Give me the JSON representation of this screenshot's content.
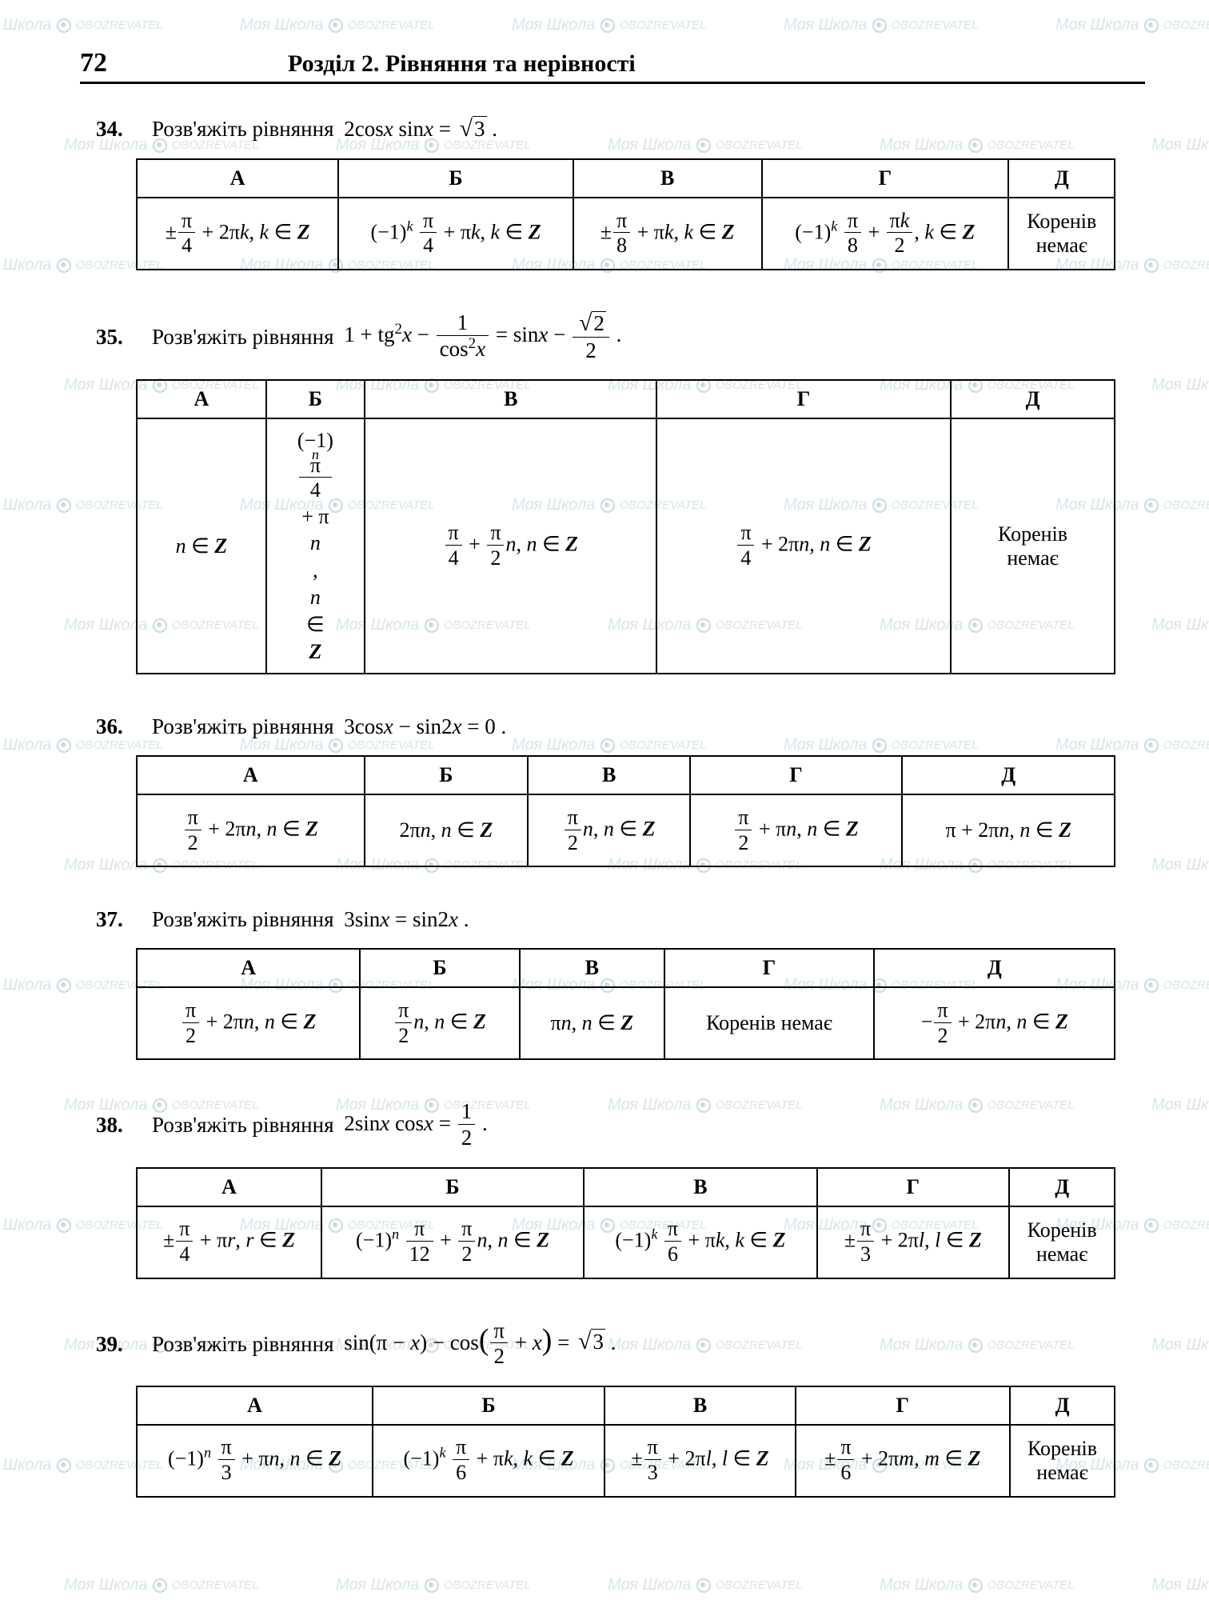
{
  "page_number": "72",
  "chapter_title": "Розділ 2. Рівняння та нерівності",
  "watermark": {
    "brand": "Моя Школа",
    "sub": "OBOZREVATEL"
  },
  "columns": [
    "А",
    "Б",
    "В",
    "Г",
    "Д"
  ],
  "problems": [
    {
      "n": "34.",
      "prompt": "Розв'яжіть рівняння",
      "eq_html": "2cos<span class='it'>x</span> sin<span class='it'>x</span> = <span class='sqrt'><span class='rad'>3</span></span> .",
      "answers": [
        "±<span class='frac'><span class='num'>π</span><span class='den'>4</span></span> + 2π<span class='it'>k</span>,  <span class='it'>k</span> ∈ <span class='bz'>Z</span>",
        "(−1)<sup><span class='it'>k</span></sup> <span class='frac'><span class='num'>π</span><span class='den'>4</span></span> + π<span class='it'>k</span>,  <span class='it'>k</span> ∈ <span class='bz'>Z</span>",
        "±<span class='frac'><span class='num'>π</span><span class='den'>8</span></span> + π<span class='it'>k</span>,  <span class='it'>k</span> ∈ <span class='bz'>Z</span>",
        "(−1)<sup><span class='it'>k</span></sup> <span class='frac'><span class='num'>π</span><span class='den'>8</span></span> + <span class='frac'><span class='num'>π<span class='it'>k</span></span><span class='den'>2</span></span>,  <span class='it'>k</span> ∈ <span class='bz'>Z</span>",
        "Коренів<br>немає"
      ]
    },
    {
      "n": "35.",
      "prompt": "Розв'яжіть рівняння",
      "eq_html": "1 + tg<sup>2</sup><span class='it'>x</span> − <span class='frac'><span class='num'>1</span><span class='den'>cos<sup>2</sup><span class='it'>x</span></span></span> = sin<span class='it'>x</span> − <span class='frac'><span class='num'><span class='sqrt'><span class='rad'>2</span></span></span><span class='den'>2</span></span> .",
      "answers": [
        "<span class='it'>n</span> ∈ <span class='bz'>Z</span>",
        "<span class='stack'><span>(−1)<sup><span class='it'>n</span></sup> <span class='frac'><span class='num'>π</span><span class='den'>4</span></span> + π<span class='it'>n</span>,</span><span><span class='it'>n</span> ∈ <span class='bz'>Z</span></span></span>",
        "<span class='frac'><span class='num'>π</span><span class='den'>4</span></span> + <span class='frac'><span class='num'>π</span><span class='den'>2</span></span><span class='it'>n</span>,  <span class='it'>n</span> ∈ <span class='bz'>Z</span>",
        "<span class='frac'><span class='num'>π</span><span class='den'>4</span></span> + 2π<span class='it'>n</span>,  <span class='it'>n</span> ∈ <span class='bz'>Z</span>",
        "Коренів<br>немає"
      ]
    },
    {
      "n": "36.",
      "prompt": "Розв'яжіть рівняння",
      "eq_html": "3cos<span class='it'>x</span> − sin2<span class='it'>x</span> = 0 .",
      "answers": [
        "<span class='frac'><span class='num'>π</span><span class='den'>2</span></span> + 2π<span class='it'>n</span>,  <span class='it'>n</span> ∈ <span class='bz'>Z</span>",
        "2π<span class='it'>n</span>,  <span class='it'>n</span> ∈ <span class='bz'>Z</span>",
        "<span class='frac'><span class='num'>π</span><span class='den'>2</span></span><span class='it'>n</span>,  <span class='it'>n</span> ∈ <span class='bz'>Z</span>",
        "<span class='frac'><span class='num'>π</span><span class='den'>2</span></span> + π<span class='it'>n</span>,  <span class='it'>n</span> ∈ <span class='bz'>Z</span>",
        "π + 2π<span class='it'>n</span>,  <span class='it'>n</span> ∈ <span class='bz'>Z</span>"
      ]
    },
    {
      "n": "37.",
      "prompt": "Розв'яжіть рівняння",
      "eq_html": "3sin<span class='it'>x</span> = sin2<span class='it'>x</span> .",
      "answers": [
        "<span class='frac'><span class='num'>π</span><span class='den'>2</span></span> + 2π<span class='it'>n</span>,  <span class='it'>n</span> ∈ <span class='bz'>Z</span>",
        "<span class='frac'><span class='num'>π</span><span class='den'>2</span></span><span class='it'>n</span>,  <span class='it'>n</span> ∈ <span class='bz'>Z</span>",
        "π<span class='it'>n</span>,  <span class='it'>n</span> ∈ <span class='bz'>Z</span>",
        "Коренів немає",
        "−<span class='frac'><span class='num'>π</span><span class='den'>2</span></span> + 2π<span class='it'>n</span>,  <span class='it'>n</span> ∈ <span class='bz'>Z</span>"
      ]
    },
    {
      "n": "38.",
      "prompt": "Розв'яжіть рівняння",
      "eq_html": "2sin<span class='it'>x</span> cos<span class='it'>x</span> = <span class='frac'><span class='num'>1</span><span class='den'>2</span></span> .",
      "answers": [
        "±<span class='frac'><span class='num'>π</span><span class='den'>4</span></span> + π<span class='it'>r</span>,  <span class='it'>r</span> ∈ <span class='bz'>Z</span>",
        "(−1)<sup><span class='it'>n</span></sup> <span class='frac'><span class='num'>π</span><span class='den'>12</span></span> + <span class='frac'><span class='num'>π</span><span class='den'>2</span></span><span class='it'>n</span>,  <span class='it'>n</span> ∈ <span class='bz'>Z</span>",
        "(−1)<sup><span class='it'>k</span></sup> <span class='frac'><span class='num'>π</span><span class='den'>6</span></span> + π<span class='it'>k</span>,  <span class='it'>k</span> ∈ <span class='bz'>Z</span>",
        "±<span class='frac'><span class='num'>π</span><span class='den'>3</span></span> + 2π<span class='it'>l</span>,  <span class='it'>l</span> ∈ <span class='bz'>Z</span>",
        "Коренів<br>немає"
      ]
    },
    {
      "n": "39.",
      "prompt": "Розв'яжіть рівняння",
      "eq_html": "sin(π − <span class='it'>x</span>) − cos<span style='font-size:1.4em'>(</span><span class='frac'><span class='num'>π</span><span class='den'>2</span></span> + <span class='it'>x</span><span style='font-size:1.4em'>)</span> = <span class='sqrt'><span class='rad'>3</span></span> .",
      "answers": [
        "(−1)<sup><span class='it'>n</span></sup> <span class='frac'><span class='num'>π</span><span class='den'>3</span></span> + π<span class='it'>n</span>,  <span class='it'>n</span> ∈ <span class='bz'>Z</span>",
        "(−1)<sup><span class='it'>k</span></sup> <span class='frac'><span class='num'>π</span><span class='den'>6</span></span> + π<span class='it'>k</span>,  <span class='it'>k</span> ∈ <span class='bz'>Z</span>",
        "±<span class='frac'><span class='num'>π</span><span class='den'>3</span></span> + 2π<span class='it'>l</span>,  <span class='it'>l</span> ∈ <span class='bz'>Z</span>",
        "±<span class='frac'><span class='num'>π</span><span class='den'>6</span></span> + 2π<span class='it'>m</span>,  <span class='it'>m</span> ∈ <span class='bz'>Z</span>",
        "Коренів<br>немає"
      ]
    }
  ]
}
